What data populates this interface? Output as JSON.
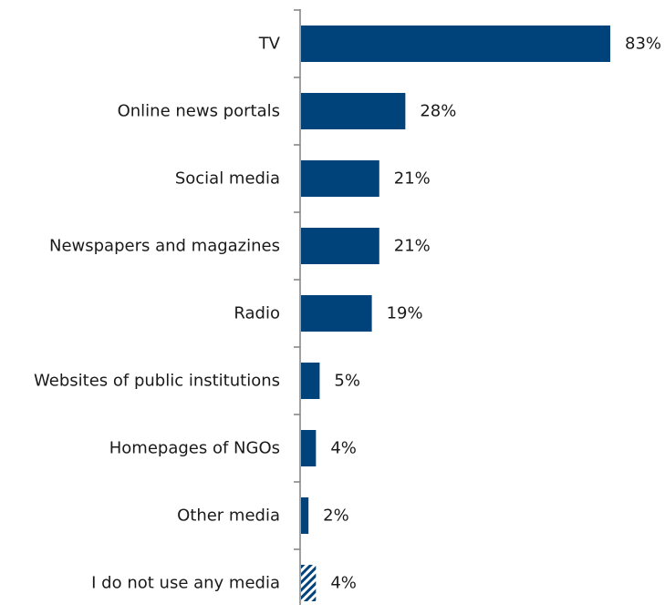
{
  "colors": {
    "bar": "#00427a",
    "hatch_stripe": "#00427a",
    "hatch_background": "#ffffff",
    "axis": "#808080",
    "text": "#1a1a1a"
  },
  "chart_data": {
    "type": "bar",
    "orientation": "horizontal",
    "title": "",
    "xlabel": "",
    "ylabel": "",
    "xlim": [
      0,
      83
    ],
    "grid": false,
    "legend": "none",
    "value_suffix": "%",
    "categories": [
      "TV",
      "Online news portals",
      "Social media",
      "Newspapers and magazines",
      "Radio",
      "Websites of public institutions",
      "Homepages of NGOs",
      "Other media",
      "I do not use any media"
    ],
    "values": [
      83,
      28,
      21,
      21,
      19,
      5,
      4,
      2,
      4
    ],
    "value_labels": [
      "83%",
      "28%",
      "21%",
      "21%",
      "19%",
      "5%",
      "4%",
      "2%",
      "4%"
    ],
    "bar_style": [
      "solid",
      "solid",
      "solid",
      "solid",
      "solid",
      "solid",
      "solid",
      "solid",
      "hatched"
    ]
  }
}
